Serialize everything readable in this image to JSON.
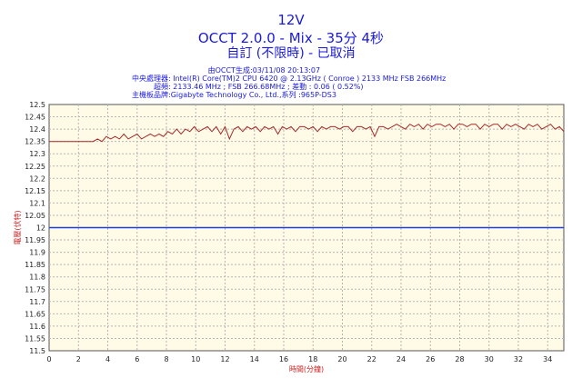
{
  "header": {
    "title": "12V",
    "subtitle": "OCCT 2.0.0 - Mix - 35分 4秒",
    "status": "自訂 (不限時) - 已取消"
  },
  "info": {
    "generated_label": "由OCCT生成",
    "generated_value": ":03/11/08 20:13:07",
    "cpu_label": "中央處理器",
    "cpu_value": " : Intel(R) Core(TM)2 CPU 6420 @ 2.13GHz ( Conroe ) 2133 MHz FSB 266MHz",
    "oc_label": "超頻",
    "oc_value": " : 2133.46 MHz ; FSB 266.68MHz ; 差動 : 0.06 ( 0.52%)",
    "mb_label": "主機板品牌",
    "mb_value": " :Gigabyte Technology Co., Ltd.,系列 :965P-DS3"
  },
  "colors": {
    "plot_bg": "#fffbe6",
    "grid": "#b5b5b5",
    "series": "#a52a2a",
    "reference": "#1f3fdd",
    "title": "#1a1adc",
    "axis_label": "#cc2222"
  },
  "chart_data": {
    "type": "line",
    "title": "12V",
    "xlabel": "時間(分鐘)",
    "ylabel": "電壓(伏特)",
    "xlim": [
      0,
      35.1
    ],
    "ylim": [
      11.5,
      12.5
    ],
    "xticks": [
      "0",
      "2",
      "4",
      "6",
      "8",
      "10",
      "12",
      "14",
      "16",
      "18",
      "20",
      "22",
      "24",
      "26",
      "28",
      "30",
      "32",
      "34"
    ],
    "yticks": [
      "11.5",
      "11.55",
      "11.6",
      "11.65",
      "11.7",
      "11.75",
      "11.8",
      "11.85",
      "11.9",
      "11.95",
      "12",
      "12.05",
      "12.1",
      "12.15",
      "12.2",
      "12.25",
      "12.3",
      "12.35",
      "12.4",
      "12.45",
      "12.5"
    ],
    "grid": true,
    "series": [
      {
        "color": "#a52a2a",
        "x": [
          0,
          1,
          2,
          3,
          3.3,
          3.6,
          3.9,
          4.2,
          4.5,
          4.8,
          5.1,
          5.4,
          5.7,
          6.0,
          6.3,
          6.6,
          6.9,
          7.2,
          7.5,
          7.8,
          8.1,
          8.4,
          8.7,
          9.0,
          9.3,
          9.6,
          9.9,
          10.2,
          10.5,
          10.8,
          11.1,
          11.4,
          11.7,
          12.0,
          12.3,
          12.6,
          12.9,
          13.2,
          13.5,
          13.8,
          14.1,
          14.4,
          14.7,
          15.0,
          15.3,
          15.6,
          15.9,
          16.2,
          16.5,
          16.8,
          17.1,
          17.4,
          17.7,
          18.0,
          18.3,
          18.6,
          18.9,
          19.2,
          19.5,
          19.8,
          20.1,
          20.4,
          20.7,
          21.0,
          21.3,
          21.6,
          21.9,
          22.2,
          22.5,
          22.8,
          23.1,
          23.4,
          23.7,
          24.0,
          24.3,
          24.6,
          24.9,
          25.2,
          25.5,
          25.8,
          26.1,
          26.4,
          26.7,
          27.0,
          27.3,
          27.6,
          27.9,
          28.2,
          28.5,
          28.8,
          29.1,
          29.4,
          29.7,
          30.0,
          30.3,
          30.6,
          30.9,
          31.2,
          31.5,
          31.8,
          32.1,
          32.4,
          32.7,
          33.0,
          33.3,
          33.6,
          33.9,
          34.2,
          34.5,
          34.8,
          35.1
        ],
        "y": [
          12.35,
          12.35,
          12.35,
          12.35,
          12.36,
          12.35,
          12.37,
          12.36,
          12.37,
          12.36,
          12.38,
          12.36,
          12.37,
          12.38,
          12.36,
          12.37,
          12.38,
          12.37,
          12.38,
          12.37,
          12.39,
          12.38,
          12.4,
          12.38,
          12.4,
          12.39,
          12.41,
          12.39,
          12.4,
          12.41,
          12.39,
          12.41,
          12.38,
          12.41,
          12.36,
          12.4,
          12.41,
          12.39,
          12.41,
          12.4,
          12.41,
          12.39,
          12.41,
          12.4,
          12.41,
          12.38,
          12.41,
          12.4,
          12.41,
          12.39,
          12.41,
          12.41,
          12.4,
          12.41,
          12.39,
          12.41,
          12.4,
          12.41,
          12.41,
          12.4,
          12.41,
          12.41,
          12.39,
          12.41,
          12.41,
          12.4,
          12.41,
          12.37,
          12.41,
          12.41,
          12.4,
          12.41,
          12.42,
          12.41,
          12.4,
          12.42,
          12.41,
          12.42,
          12.4,
          12.42,
          12.41,
          12.42,
          12.42,
          12.41,
          12.42,
          12.4,
          12.42,
          12.42,
          12.41,
          12.42,
          12.42,
          12.4,
          12.42,
          12.41,
          12.42,
          12.42,
          12.4,
          12.42,
          12.41,
          12.42,
          12.41,
          12.4,
          12.42,
          12.41,
          12.42,
          12.4,
          12.41,
          12.42,
          12.4,
          12.41,
          12.39
        ]
      },
      {
        "color": "#1f3fdd",
        "x": [
          0,
          35.1
        ],
        "y": [
          12.0,
          12.0
        ]
      }
    ]
  }
}
